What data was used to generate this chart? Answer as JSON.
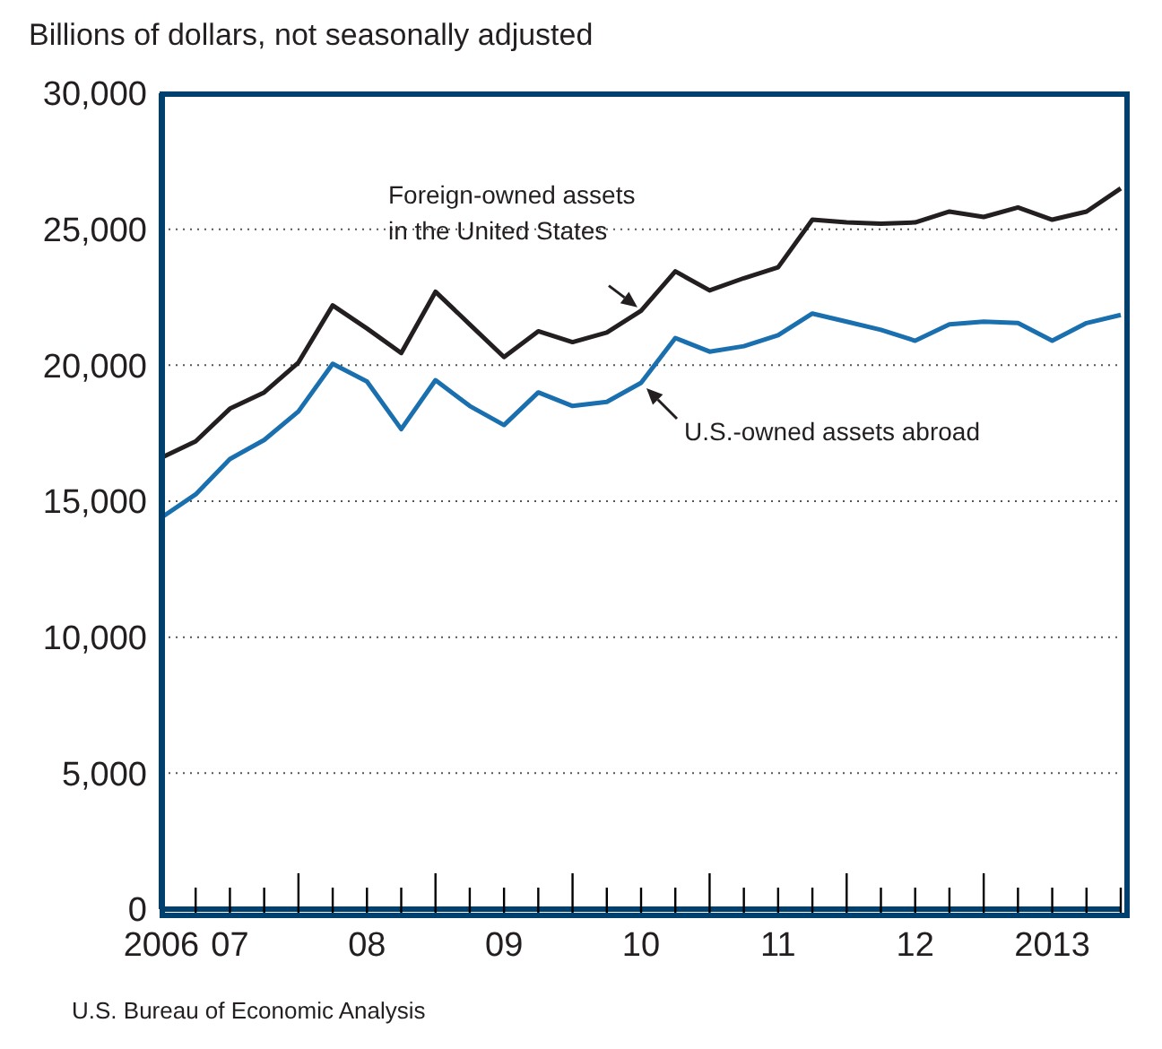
{
  "chart_data": {
    "type": "line",
    "ylabel": "Billions of dollars, not seasonally adjusted",
    "categories": [
      "2006",
      null,
      "07",
      null,
      null,
      null,
      "08",
      null,
      null,
      null,
      "09",
      null,
      null,
      null,
      "10",
      null,
      null,
      null,
      "11",
      null,
      null,
      null,
      "12",
      null,
      null,
      null,
      "2013",
      null,
      null
    ],
    "series": [
      {
        "color": "#231f20",
        "values": [
          16600,
          17200,
          18400,
          19000,
          20100,
          22200,
          21350,
          20450,
          22700,
          21500,
          20300,
          21250,
          20850,
          21200,
          22000,
          23450,
          22750,
          23200,
          23600,
          25350,
          25250,
          25200,
          25250,
          25650,
          25450,
          25800,
          25350,
          25650,
          26500
        ]
      },
      {
        "color": "#1a6faf",
        "values": [
          14400,
          15250,
          16550,
          17250,
          18300,
          20050,
          19400,
          17650,
          19450,
          18500,
          17800,
          19000,
          18500,
          18650,
          19350,
          21000,
          20500,
          20700,
          21100,
          21900,
          21600,
          21300,
          20900,
          21500,
          21600,
          21550,
          20900,
          21550,
          21850
        ]
      }
    ],
    "ylim": [
      0,
      30000
    ],
    "yticks": [
      0,
      {
        "value": 5000,
        "label": "5,000"
      },
      {
        "value": 10000,
        "label": "10,000"
      },
      {
        "value": 15000,
        "label": "15,000"
      },
      {
        "value": 20000,
        "label": "20,000"
      },
      {
        "value": 25000,
        "label": "25,000"
      },
      {
        "value": 30000,
        "label": "30,000"
      }
    ],
    "grid": "y",
    "legend": false,
    "marker": "none",
    "line_style": "solid",
    "annotations": [
      {
        "text": "Foreign-owned assets\nin the United States",
        "x": "10",
        "y": 22000
      },
      {
        "text": "U.S.-owned assets abroad",
        "x": "10",
        "y": 19350
      },
      "U.S. Bureau of Economic Analysis"
    ]
  }
}
